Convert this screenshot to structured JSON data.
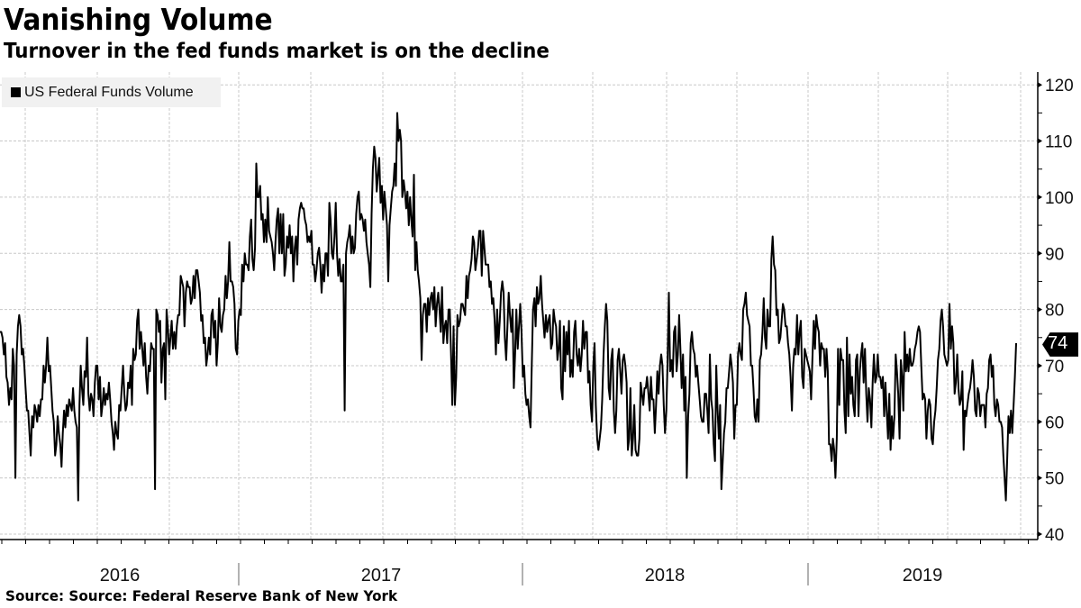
{
  "header": {
    "title": "Vanishing Volume",
    "subtitle": "Turnover in the fed funds market is on the decline"
  },
  "legend": {
    "items": [
      {
        "label": "US Federal Funds Volume",
        "color": "#000000"
      }
    ]
  },
  "footer": {
    "source": "Source: Source: Federal Reserve Bank of New York"
  },
  "last_value": {
    "label": "74",
    "value": 74
  },
  "colors": {
    "line": "#000000",
    "grid": "#c8c8c8",
    "legend_bg": "#f1f1f1",
    "axis": "#000000"
  },
  "chart_data": {
    "type": "line",
    "title": "Vanishing Volume",
    "subtitle": "Turnover in the fed funds market is on the decline",
    "xlabel": "",
    "ylabel": "",
    "ylim": [
      40,
      122
    ],
    "yticks": [
      40,
      50,
      60,
      70,
      80,
      90,
      100,
      110,
      120
    ],
    "y_axis_position": "right",
    "x_tick_labels": [
      "2016",
      "2017",
      "2018",
      "2019"
    ],
    "grid": true,
    "legend_position": "top-left",
    "series": [
      {
        "name": "US Federal Funds Volume",
        "color": "#000000",
        "last_value": 74,
        "x_range": [
          "2015-12",
          "2019-11"
        ],
        "frequency": "approx. weekly",
        "values": [
          76,
          76,
          75,
          72,
          74,
          68,
          67,
          63,
          66,
          64,
          73,
          70,
          50,
          72,
          77,
          79,
          77,
          72,
          73,
          70,
          66,
          62,
          62,
          58,
          54,
          61,
          59,
          63,
          62,
          60,
          63,
          61,
          64,
          64,
          70,
          67,
          70,
          75,
          69,
          70,
          66,
          62,
          60,
          54,
          56,
          61,
          58,
          56,
          52,
          58,
          62,
          59,
          63,
          61,
          64,
          63,
          62,
          66,
          62,
          60,
          59,
          46,
          63,
          70,
          66,
          63,
          69,
          68,
          75,
          65,
          62,
          65,
          64,
          61,
          67,
          70,
          70,
          64,
          68,
          61,
          63,
          66,
          63,
          65,
          64,
          67,
          64,
          60,
          58,
          55,
          60,
          58,
          57,
          63,
          62,
          66,
          70,
          65,
          62,
          63,
          67,
          66,
          70,
          63,
          73,
          71,
          72,
          78,
          80,
          73,
          76,
          73,
          70,
          74,
          68,
          65,
          70,
          69,
          74,
          73,
          73,
          48,
          80,
          79,
          76,
          78,
          67,
          73,
          74,
          64,
          80,
          77,
          72,
          75,
          78,
          73,
          76,
          73,
          77,
          79,
          79,
          86,
          85,
          84,
          77,
          83,
          85,
          84,
          84,
          81,
          82,
          86,
          82,
          87,
          87,
          85,
          83,
          78,
          79,
          74,
          75,
          70,
          72,
          75,
          72,
          79,
          80,
          75,
          78,
          70,
          74,
          82,
          77,
          76,
          79,
          80,
          86,
          82,
          85,
          92,
          85,
          85,
          84,
          81,
          73,
          72,
          78,
          80,
          79,
          88,
          85,
          90,
          88,
          88,
          87,
          93,
          96,
          89,
          87,
          91,
          106,
          100,
          100,
          102,
          96,
          97,
          92,
          96,
          92,
          100,
          94,
          93,
          92,
          90,
          87,
          92,
          96,
          98,
          90,
          97,
          90,
          97,
          86,
          88,
          93,
          91,
          95,
          90,
          93,
          85,
          91,
          93,
          88,
          96,
          98,
          99,
          98,
          98,
          96,
          95,
          92,
          93,
          92,
          94,
          88,
          88,
          85,
          87,
          90,
          91,
          88,
          83,
          88,
          85,
          90,
          90,
          86,
          99,
          96,
          90,
          89,
          93,
          99,
          90,
          86,
          89,
          85,
          85,
          88,
          62,
          90,
          92,
          93,
          95,
          90,
          93,
          90,
          91,
          97,
          100,
          101,
          96,
          97,
          96,
          94,
          96,
          92,
          90,
          88,
          84,
          97,
          105,
          109,
          107,
          101,
          104,
          107,
          99,
          102,
          96,
          101,
          98,
          95,
          85,
          95,
          98,
          101,
          102,
          106,
          102,
          115,
          110,
          112,
          110,
          100,
          103,
          101,
          98,
          101,
          95,
          100,
          96,
          93,
          104,
          87,
          92,
          87,
          85,
          82,
          71,
          79,
          81,
          81,
          76,
          82,
          79,
          82,
          83,
          80,
          84,
          77,
          81,
          83,
          80,
          76,
          84,
          74,
          77,
          78,
          74,
          80,
          80,
          72,
          63,
          77,
          63,
          68,
          79,
          77,
          78,
          81,
          81,
          80,
          79,
          86,
          82,
          86,
          87,
          89,
          93,
          92,
          87,
          89,
          91,
          94,
          94,
          86,
          94,
          91,
          88,
          88,
          88,
          84,
          85,
          81,
          82,
          78,
          72,
          80,
          74,
          78,
          83,
          85,
          83,
          75,
          71,
          77,
          83,
          79,
          76,
          80,
          66,
          72,
          80,
          73,
          77,
          81,
          76,
          68,
          70,
          65,
          63,
          64,
          61,
          59,
          70,
          80,
          82,
          77,
          84,
          81,
          82,
          86,
          81,
          78,
          75,
          79,
          76,
          78,
          79,
          73,
          74,
          80,
          78,
          77,
          71,
          73,
          78,
          66,
          64,
          77,
          69,
          76,
          72,
          78,
          68,
          71,
          68,
          76,
          78,
          72,
          70,
          73,
          69,
          72,
          78,
          73,
          76,
          76,
          67,
          69,
          63,
          60,
          70,
          74,
          63,
          57,
          55,
          57,
          59,
          64,
          72,
          77,
          81,
          78,
          66,
          64,
          71,
          73,
          62,
          58,
          62,
          71,
          73,
          69,
          65,
          71,
          72,
          70,
          67,
          55,
          57,
          66,
          54,
          57,
          63,
          55,
          54,
          54,
          57,
          67,
          65,
          63,
          66,
          66,
          68,
          65,
          62,
          68,
          64,
          64,
          58,
          63,
          69,
          65,
          70,
          72,
          70,
          63,
          58,
          62,
          71,
          83,
          69,
          71,
          68,
          76,
          77,
          69,
          72,
          79,
          73,
          66,
          72,
          62,
          68,
          50,
          61,
          65,
          74,
          76,
          73,
          72,
          68,
          70,
          67,
          64,
          61,
          60,
          60,
          65,
          65,
          62,
          58,
          72,
          64,
          62,
          56,
          53,
          70,
          62,
          57,
          63,
          48,
          53,
          58,
          60,
          66,
          66,
          69,
          72,
          70,
          67,
          57,
          63,
          63,
          72,
          74,
          72,
          71,
          80,
          81,
          83,
          79,
          78,
          77,
          70,
          70,
          66,
          61,
          60,
          64,
          60,
          71,
          72,
          76,
          82,
          75,
          73,
          80,
          77,
          77,
          89,
          93,
          88,
          87,
          79,
          80,
          74,
          75,
          78,
          81,
          80,
          77,
          77,
          74,
          72,
          68,
          62,
          70,
          73,
          72,
          79,
          72,
          76,
          78,
          68,
          66,
          73,
          72,
          71,
          70,
          69,
          64,
          71,
          78,
          73,
          79,
          77,
          76,
          70,
          74,
          73,
          73,
          68,
          73,
          69,
          56,
          56,
          53,
          57,
          55,
          50,
          57,
          73,
          63,
          73,
          71,
          71,
          62,
          58,
          75,
          61,
          72,
          65,
          68,
          63,
          61,
          71,
          72,
          61,
          69,
          72,
          74,
          67,
          73,
          65,
          60,
          66,
          64,
          59,
          67,
          72,
          67,
          68,
          72,
          68,
          68,
          66,
          68,
          61,
          67,
          62,
          57,
          65,
          55,
          61,
          57,
          61,
          72,
          69,
          65,
          57,
          71,
          68,
          62,
          76,
          69,
          72,
          69,
          73,
          70,
          70,
          71,
          73,
          74,
          76,
          77,
          76,
          70,
          64,
          65,
          64,
          57,
          62,
          64,
          63,
          57,
          56,
          60,
          62,
          66,
          71,
          73,
          78,
          80,
          77,
          72,
          71,
          70,
          71,
          81,
          73,
          77,
          74,
          65,
          67,
          72,
          66,
          63,
          64,
          69,
          55,
          62,
          61,
          63,
          65,
          66,
          68,
          71,
          68,
          62,
          61,
          66,
          65,
          61,
          63,
          63,
          63,
          59,
          65,
          66,
          71,
          72,
          68,
          70,
          63,
          61,
          64,
          63,
          60,
          60,
          59,
          54,
          50,
          46,
          53,
          61,
          58,
          62,
          58,
          63,
          68,
          74
        ]
      }
    ]
  }
}
